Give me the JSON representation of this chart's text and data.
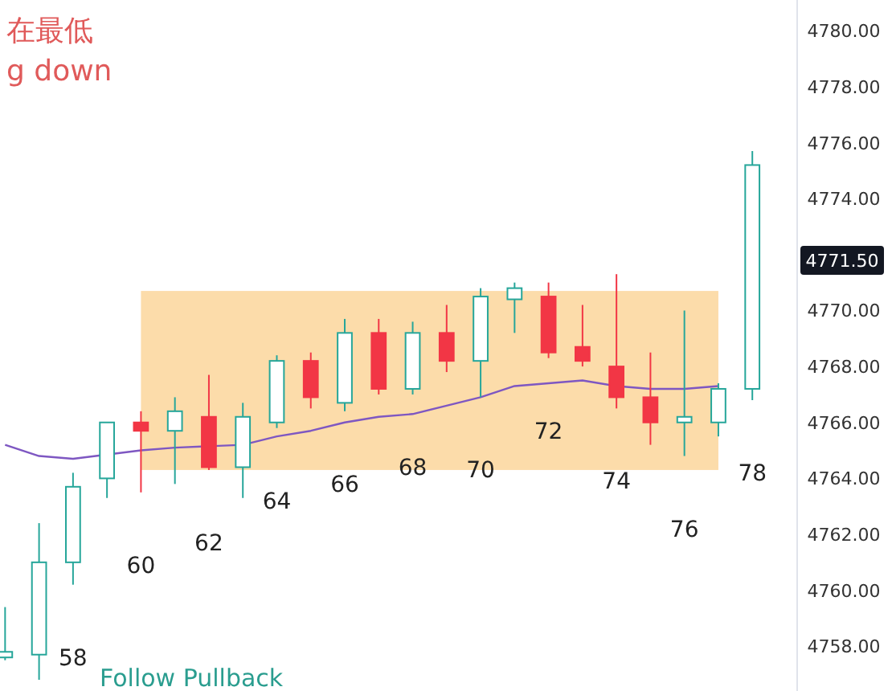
{
  "chart_data": {
    "type": "candlestick",
    "categories": [
      null,
      null,
      "58",
      null,
      "60",
      null,
      "62",
      null,
      "64",
      null,
      "66",
      null,
      "68",
      null,
      "70",
      null,
      "72",
      null,
      "74",
      null,
      "76",
      null,
      "78"
    ],
    "ohlc": [
      [
        4757.6,
        4759.4,
        4757.5,
        4757.8
      ],
      [
        4757.7,
        4762.4,
        4756.8,
        4761.0
      ],
      [
        4761.0,
        4764.2,
        4760.2,
        4763.7
      ],
      [
        4764.0,
        4766.0,
        4763.3,
        4766.0
      ],
      [
        4766.0,
        4766.4,
        4763.5,
        4765.7
      ],
      [
        4765.7,
        4766.9,
        4763.8,
        4766.4
      ],
      [
        4766.2,
        4767.7,
        4764.3,
        4764.4
      ],
      [
        4764.4,
        4766.7,
        4763.3,
        4766.2
      ],
      [
        4766.0,
        4768.4,
        4765.8,
        4768.2
      ],
      [
        4768.2,
        4768.5,
        4766.5,
        4766.9
      ],
      [
        4766.7,
        4769.7,
        4766.4,
        4769.2
      ],
      [
        4769.2,
        4769.7,
        4767.0,
        4767.2
      ],
      [
        4767.2,
        4769.6,
        4767.0,
        4769.2
      ],
      [
        4769.2,
        4770.2,
        4767.8,
        4768.2
      ],
      [
        4768.2,
        4770.8,
        4766.9,
        4770.5
      ],
      [
        4770.4,
        4771.0,
        4769.2,
        4770.8
      ],
      [
        4770.5,
        4771.0,
        4768.3,
        4768.5
      ],
      [
        4768.7,
        4770.2,
        4768.0,
        4768.2
      ],
      [
        4768.0,
        4771.3,
        4766.5,
        4766.9
      ],
      [
        4766.9,
        4768.5,
        4765.2,
        4766.0
      ],
      [
        4766.0,
        4770.0,
        4764.8,
        4766.2
      ],
      [
        4766.0,
        4767.4,
        4765.5,
        4767.2
      ],
      [
        4767.2,
        4775.7,
        4766.8,
        4775.2
      ]
    ],
    "colors": [
      "#26a69a",
      "#26a69a",
      "#26a69a",
      "#26a69a",
      "#f23645",
      "#26a69a",
      "#f23645",
      "#26a69a",
      "#26a69a",
      "#f23645",
      "#26a69a",
      "#f23645",
      "#26a69a",
      "#f23645",
      "#26a69a",
      "#26a69a",
      "#f23645",
      "#f23645",
      "#f23645",
      "#f23645",
      "#26a69a",
      "#26a69a",
      "#26a69a"
    ],
    "series": [
      {
        "type": "line",
        "color": "#7e57c2",
        "values": [
          4765.2,
          4764.8,
          4764.7,
          null,
          4765.0,
          4765.1,
          null,
          4765.2,
          4765.5,
          4765.7,
          4766.0,
          4766.2,
          4766.3,
          4766.6,
          4766.9,
          4767.3,
          4767.4,
          4767.5,
          4767.3,
          4767.2,
          4767.2,
          4767.3,
          null
        ]
      }
    ],
    "bands": [
      {
        "axis": "y",
        "from": 4764.3,
        "to": 4770.7,
        "color": "#fcdcaa"
      }
    ],
    "annotations": [
      "在最低",
      "g down",
      "Follow Pullback",
      "4771.50"
    ],
    "ylim": [
      4756.4,
      4781.1
    ],
    "yticks": [
      {
        "value": 4758,
        "label": "4758.00"
      },
      {
        "value": 4760,
        "label": "4760.00"
      },
      {
        "value": 4762,
        "label": "4762.00"
      },
      {
        "value": 4764,
        "label": "4764.00"
      },
      {
        "value": 4766,
        "label": "4766.00"
      },
      {
        "value": 4768,
        "label": "4768.00"
      },
      {
        "value": 4770,
        "label": "4770.00"
      },
      {
        "value": 4774,
        "label": "4774.00"
      },
      {
        "value": 4776,
        "label": "4776.00"
      },
      {
        "value": 4778,
        "label": "4778.00"
      },
      {
        "value": 4780,
        "label": "4780.00"
      }
    ],
    "tick_labels": "y"
  }
}
